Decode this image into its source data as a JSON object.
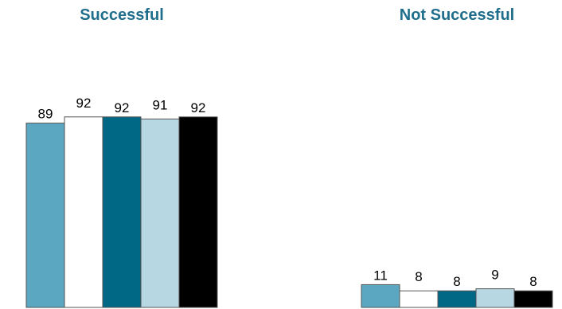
{
  "chart_data": {
    "type": "bar",
    "categories": [
      "Successful",
      "Not Successful"
    ],
    "series": [
      {
        "values": [
          89,
          11
        ],
        "color": "#5ba7c2"
      },
      {
        "values": [
          92,
          8
        ],
        "color": "#ffffff"
      },
      {
        "values": [
          92,
          8
        ],
        "color": "#006884"
      },
      {
        "values": [
          91,
          9
        ],
        "color": "#b7d7e2"
      },
      {
        "values": [
          92,
          8
        ],
        "color": "#000000"
      }
    ],
    "ylim": [
      0,
      100
    ],
    "grid": false,
    "legend": "none",
    "title": "",
    "xlabel": "",
    "ylabel": ""
  }
}
